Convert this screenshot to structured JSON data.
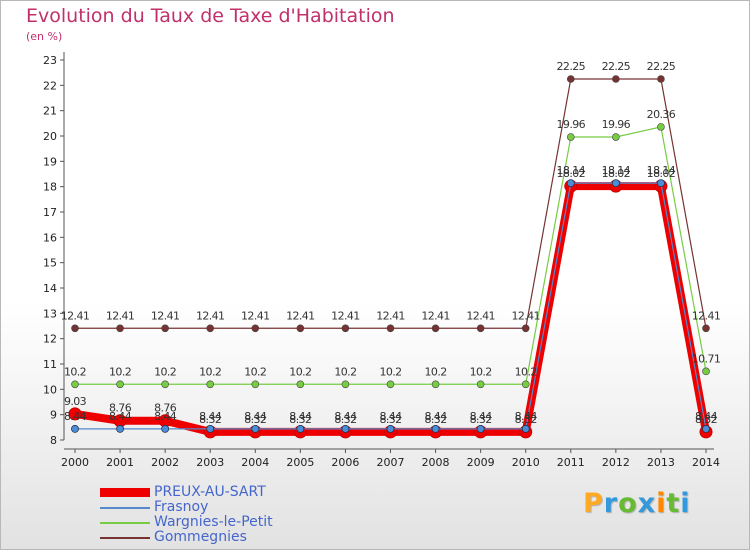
{
  "title": "Evolution du Taux de Taxe d'Habitation",
  "ylabel": "(en %)",
  "logo": "Proxiti",
  "logo_colors": [
    "#ffaa22",
    "#3399dd",
    "#66bb33",
    "#3399dd",
    "#ff8800",
    "#66bb33",
    "#3399dd"
  ],
  "chart_data": {
    "type": "line",
    "x": [
      2000,
      2001,
      2002,
      2003,
      2004,
      2005,
      2006,
      2007,
      2008,
      2009,
      2010,
      2011,
      2012,
      2013,
      2014
    ],
    "ylim": [
      8,
      23
    ],
    "yticks": [
      8,
      9,
      10,
      11,
      12,
      13,
      14,
      15,
      16,
      17,
      18,
      19,
      20,
      21,
      22,
      23
    ],
    "grid": false,
    "legend": "bottom-left",
    "series": [
      {
        "name": "PREUX-AU-SART",
        "color": "#ee0000",
        "values": [
          9.03,
          8.76,
          8.76,
          8.32,
          8.32,
          8.32,
          8.32,
          8.32,
          8.32,
          8.32,
          8.32,
          18.02,
          18.02,
          18.02,
          8.32
        ],
        "labels": [
          "9.03",
          "8.76",
          "8.76",
          "8.32",
          "8.32",
          "8.32",
          "8.32",
          "8.32",
          "8.32",
          "8.32",
          "8.32",
          "18.02",
          "18.02",
          "18.02",
          "8.32"
        ]
      },
      {
        "name": "Frasnoy",
        "color": "#5588cc",
        "values": [
          8.44,
          8.44,
          8.44,
          8.44,
          8.44,
          8.44,
          8.44,
          8.44,
          8.44,
          8.44,
          8.44,
          18.14,
          18.14,
          18.14,
          8.44
        ],
        "labels": [
          "8.44",
          "8.44",
          "8.44",
          "8.44",
          "8.44",
          "8.44",
          "8.44",
          "8.44",
          "8.44",
          "8.44",
          "8.44",
          "18.14",
          "18.14",
          "18.14",
          "8.44"
        ]
      },
      {
        "name": "Wargnies-le-Petit",
        "color": "#77cc44",
        "values": [
          10.2,
          10.2,
          10.2,
          10.2,
          10.2,
          10.2,
          10.2,
          10.2,
          10.2,
          10.2,
          10.2,
          19.96,
          19.96,
          20.36,
          10.71
        ],
        "labels": [
          "10.2",
          "10.2",
          "10.2",
          "10.2",
          "10.2",
          "10.2",
          "10.2",
          "10.2",
          "10.2",
          "10.2",
          "10.2",
          "19.96",
          "19.96",
          "20.36",
          "10.71"
        ]
      },
      {
        "name": "Gommegnies",
        "color": "#773333",
        "values": [
          12.41,
          12.41,
          12.41,
          12.41,
          12.41,
          12.41,
          12.41,
          12.41,
          12.41,
          12.41,
          12.41,
          22.25,
          22.25,
          22.25,
          12.41
        ],
        "labels": [
          "12.41",
          "12.41",
          "12.41",
          "12.41",
          "12.41",
          "12.41",
          "12.41",
          "12.41",
          "12.41",
          "12.41",
          "12.41",
          "22.25",
          "22.25",
          "22.25",
          "12.41"
        ]
      }
    ]
  }
}
